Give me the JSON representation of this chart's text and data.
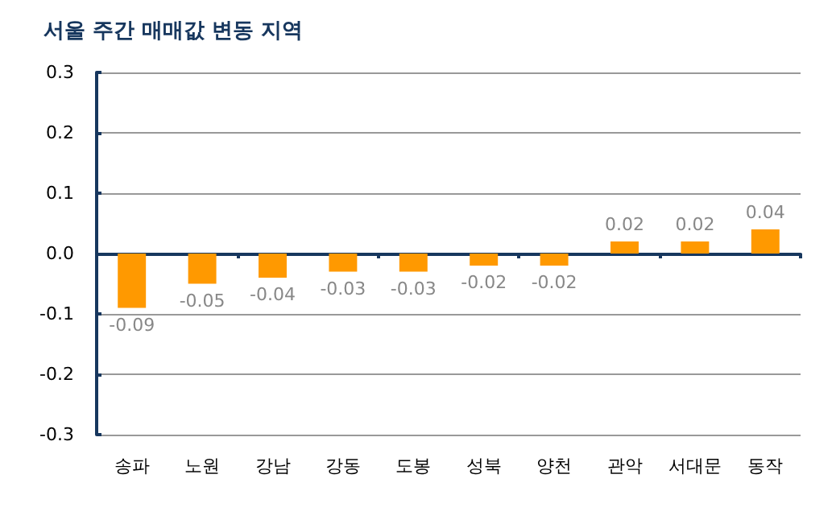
{
  "chart_data": {
    "type": "bar",
    "title": "서울 주간 매매값 변동 지역",
    "categories": [
      "송파",
      "노원",
      "강남",
      "강동",
      "도봉",
      "성북",
      "양천",
      "관악",
      "서대문",
      "동작"
    ],
    "values": [
      -0.09,
      -0.05,
      -0.04,
      -0.03,
      -0.03,
      -0.02,
      -0.02,
      0.02,
      0.02,
      0.04
    ],
    "color": "#ff9900",
    "ylim": [
      -0.3,
      0.3
    ],
    "yticks": [
      0.3,
      0.2,
      0.1,
      {
        "value": 0,
        "label": "0.0"
      },
      -0.1,
      -0.2,
      -0.3
    ],
    "grid": "y",
    "data_labels": true
  }
}
